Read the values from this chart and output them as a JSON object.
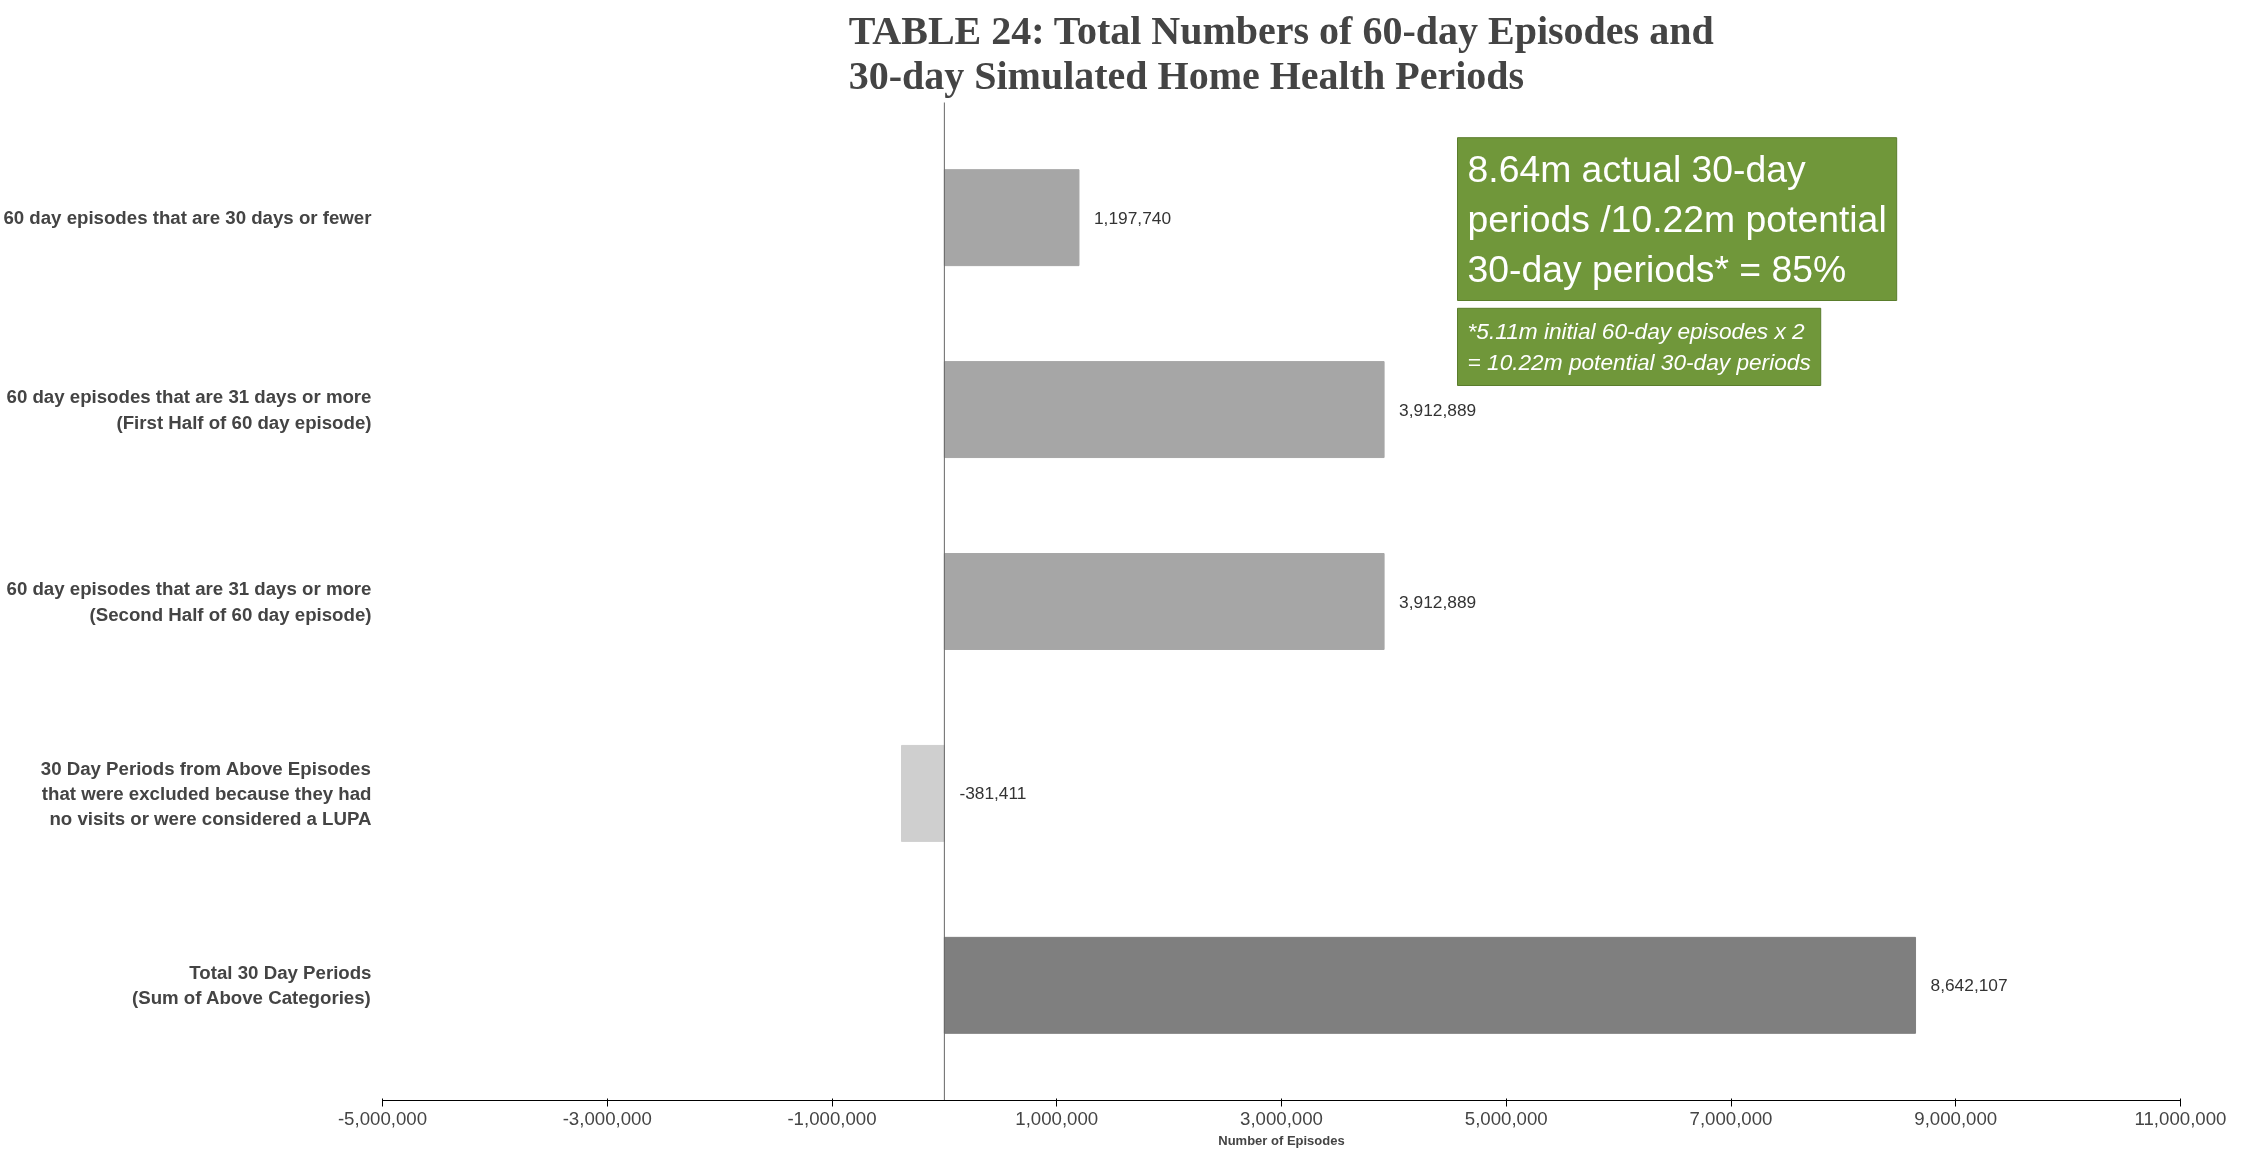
{
  "chart_data": {
    "type": "bar",
    "orientation": "horizontal",
    "title": "TABLE 24: Total Numbers of 60-day Episodes and\n30-day Simulated Home Health Periods",
    "xlabel": "Number of Episodes",
    "categories": [
      "60 day episodes that are 30 days or fewer",
      "60 day episodes that are 31 days or more\n(First Half of 60 day episode)",
      "60 day episodes that are 31 days or more\n(Second Half of 60 day episode)",
      "30 Day Periods from Above Episodes\nthat were excluded because they had\nno visits or were considered a LUPA",
      "Total 30 Day Periods\n(Sum of Above Categories)"
    ],
    "values": [
      1197740,
      3912889,
      3912889,
      -381411,
      8642107
    ],
    "colors": [
      "#a6a6a6",
      "#a6a6a6",
      "#a6a6a6",
      "#cfcfcf",
      "#7f7f7f"
    ],
    "value_labels": [
      "1,197,740",
      "3,912,889",
      "3,912,889",
      "-381,411",
      "8,642,107"
    ],
    "xlim": [
      -5000000,
      11000000
    ],
    "xticks": [
      {
        "value": -5000000,
        "label": "-5,000,000"
      },
      {
        "value": -3000000,
        "label": "-3,000,000"
      },
      {
        "value": -1000000,
        "label": "-1,000,000"
      },
      {
        "value": 1000000,
        "label": "1,000,000"
      },
      {
        "value": 3000000,
        "label": "3,000,000"
      },
      {
        "value": 5000000,
        "label": "5,000,000"
      },
      {
        "value": 7000000,
        "label": "7,000,000"
      },
      {
        "value": 9000000,
        "label": "9,000,000"
      },
      {
        "value": 11000000,
        "label": "11,000,000"
      }
    ],
    "grid": false,
    "annotations": [
      "8.64m actual 30-day\nperiods /10.22m potential\n30-day periods* = 85%",
      "*5.11m initial 60-day episodes x 2\n= 10.22m potential 30-day periods"
    ]
  }
}
